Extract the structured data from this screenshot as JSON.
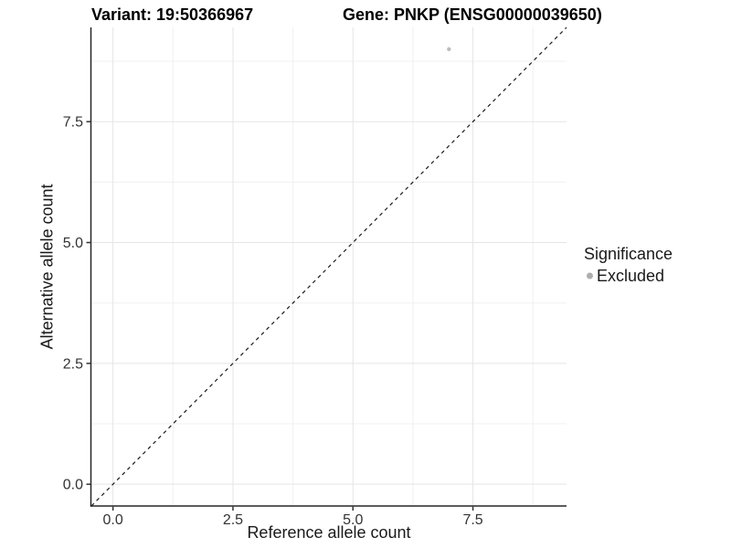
{
  "chart_data": {
    "type": "scatter",
    "title_left": "Variant: 19:50366967",
    "title_right": "Gene: PNKP (ENSG00000039650)",
    "xlabel": "Reference allele count",
    "ylabel": "Alternative allele count",
    "xlim": [
      -0.45,
      9.45
    ],
    "ylim": [
      -0.45,
      9.45
    ],
    "x_ticks": [
      0.0,
      2.5,
      5.0,
      7.5
    ],
    "y_ticks": [
      0.0,
      2.5,
      5.0,
      7.5
    ],
    "x_tick_labels": [
      "0.0",
      "2.5",
      "5.0",
      "7.5"
    ],
    "y_tick_labels": [
      "0.0",
      "2.5",
      "5.0",
      "7.5"
    ],
    "x_minor_ticks": [
      1.25,
      3.75,
      6.25,
      8.75
    ],
    "y_minor_ticks": [
      1.25,
      3.75,
      6.25,
      8.75
    ],
    "grid": true,
    "series": [
      {
        "name": "Excluded",
        "color": "#bdbdbd",
        "points": [
          {
            "x": 7,
            "y": 9
          }
        ]
      }
    ],
    "reference_line": {
      "type": "identity",
      "style": "dashed",
      "color": "#1a1a1a"
    },
    "legend": {
      "title": "Significance",
      "position": "right",
      "entries": [
        {
          "label": "Excluded",
          "color": "#aeaeae"
        }
      ]
    }
  },
  "colors": {
    "background": "#ffffff",
    "grid_major": "#e5e5e5",
    "grid_minor": "#f0f0f0",
    "axis_line": "#262626",
    "tick_mark": "#333333",
    "tick_label": "#333333",
    "point_excluded": "#bdbdbd"
  }
}
